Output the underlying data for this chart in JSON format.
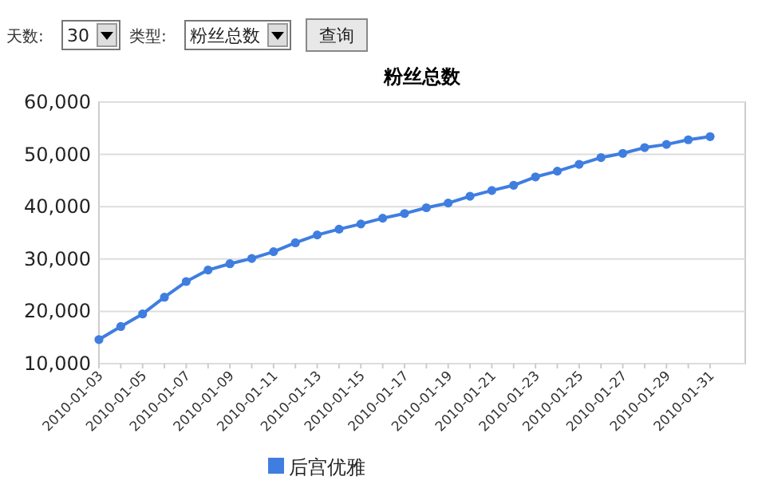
{
  "chart_data": {
    "type": "line",
    "title": "粉丝总数",
    "categories": [
      "2010-01-03",
      null,
      "2010-01-05",
      null,
      "2010-01-07",
      null,
      "2010-01-09",
      null,
      "2010-01-11",
      null,
      "2010-01-13",
      null,
      "2010-01-15",
      null,
      "2010-01-17",
      null,
      "2010-01-19",
      null,
      "2010-01-21",
      null,
      "2010-01-23",
      null,
      "2010-01-25",
      null,
      "2010-01-27",
      null,
      "2010-01-29",
      null,
      "2010-01-31"
    ],
    "series": [
      {
        "name": "后宫优雅",
        "color": "#3f7ee0",
        "values": [
          14600,
          17100,
          19500,
          22700,
          25700,
          27900,
          29100,
          30100,
          31400,
          33100,
          34600,
          35700,
          36700,
          37800,
          38700,
          39800,
          40700,
          42000,
          43100,
          44100,
          45700,
          46800,
          48100,
          49400,
          50200,
          51300,
          51900,
          52800,
          53400
        ]
      }
    ],
    "ylim": [
      10000,
      60000
    ],
    "yticks": [
      {
        "value": 10000,
        "label": "10,000"
      },
      {
        "value": 20000,
        "label": "20,000"
      },
      {
        "value": 30000,
        "label": "30,000"
      },
      {
        "value": 40000,
        "label": "40,000"
      },
      {
        "value": 50000,
        "label": "50,000"
      },
      {
        "value": 60000,
        "label": "60,000"
      }
    ],
    "grid": "y",
    "legend": "bottom",
    "marker": "circle",
    "line_style": "solid",
    "annotations": [
      "天数:",
      "30",
      "类型:",
      "粉丝总数",
      "查询"
    ]
  }
}
